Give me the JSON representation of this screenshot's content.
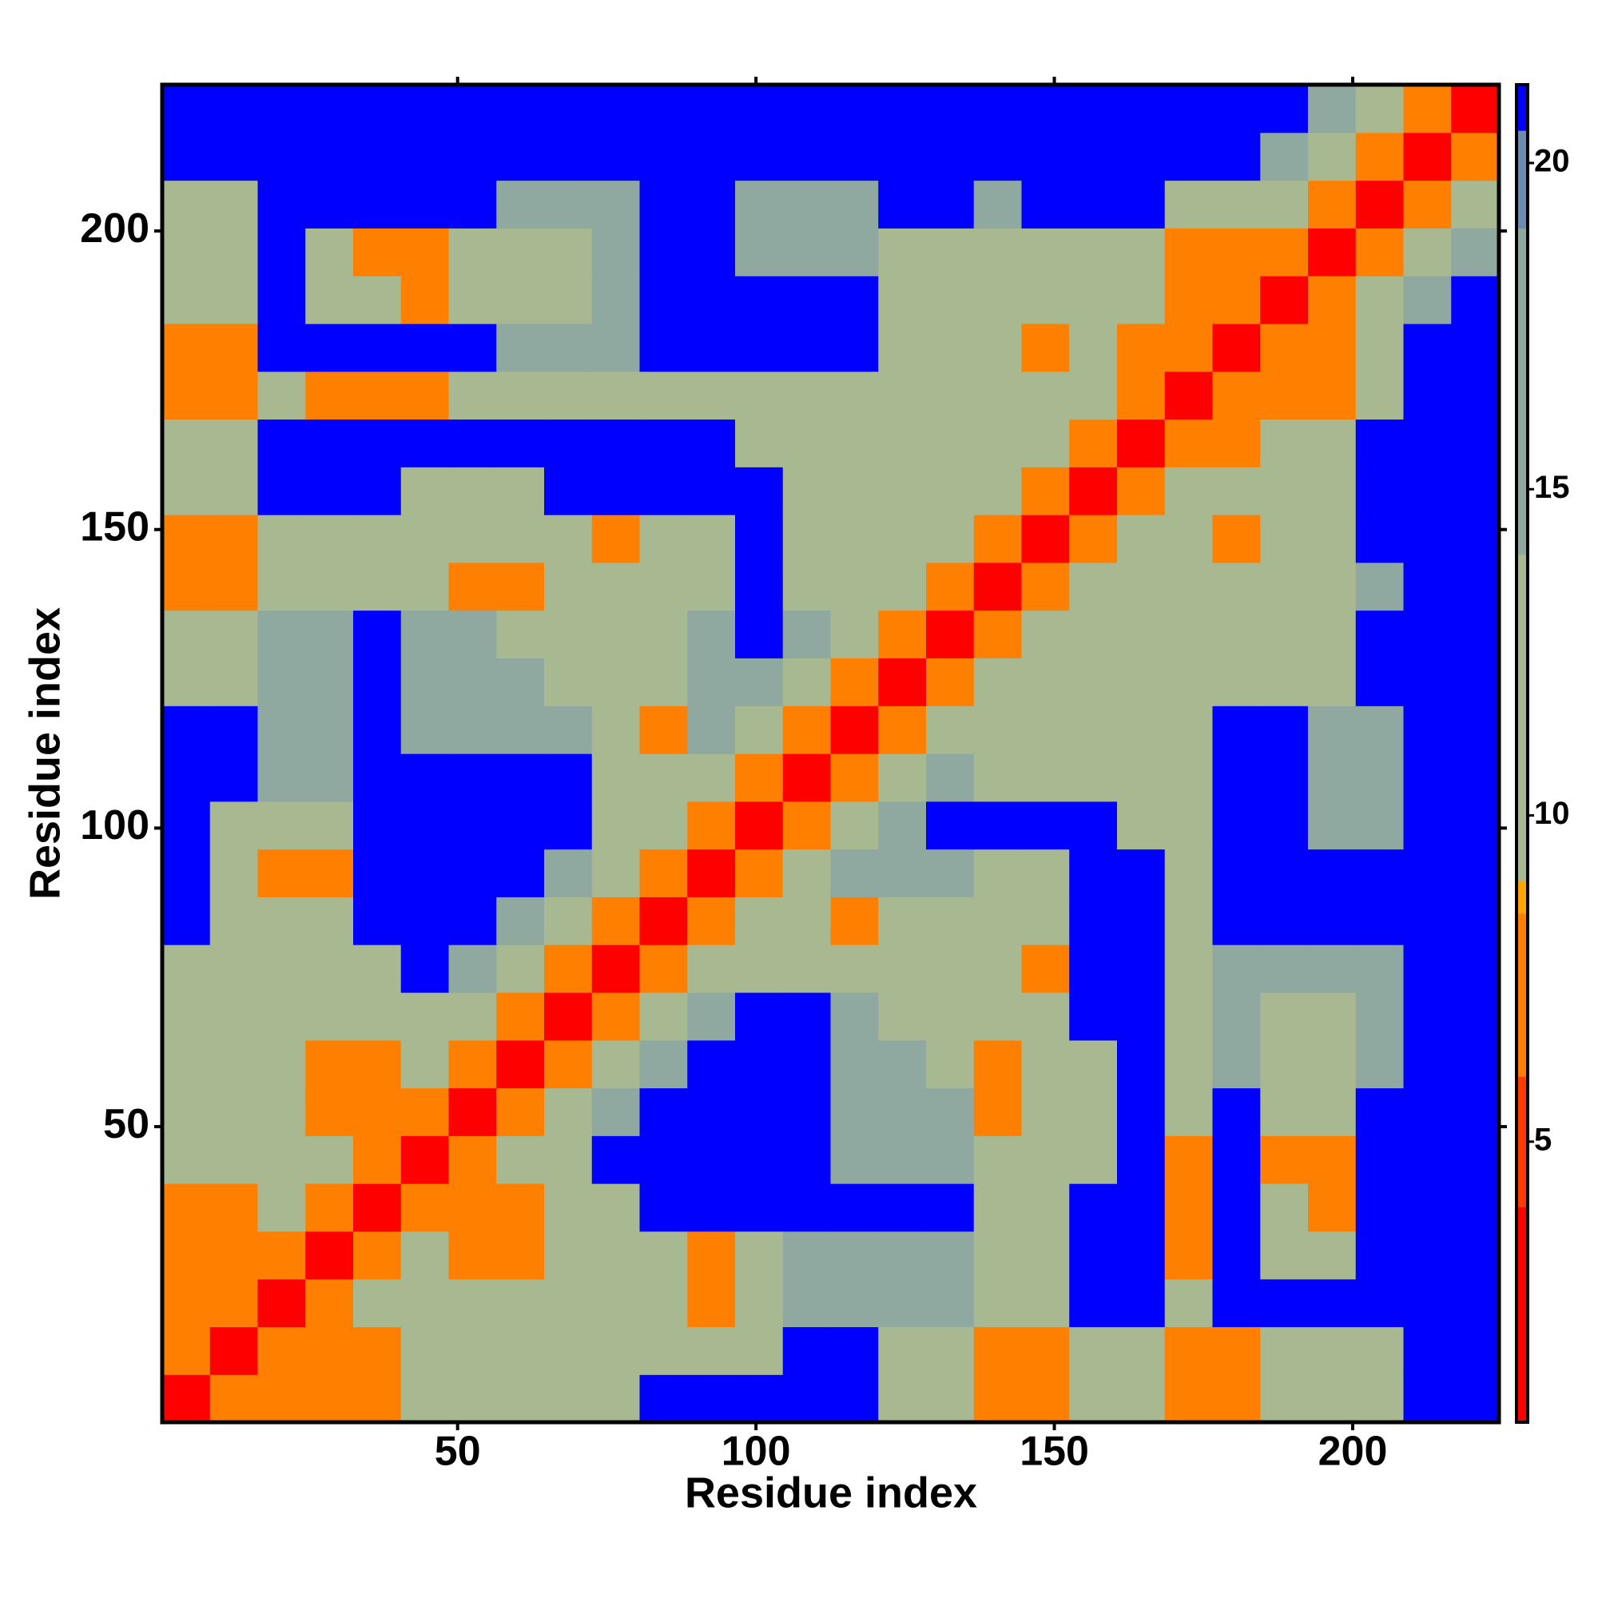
{
  "chart_data": {
    "type": "heatmap",
    "x_label": "Residue index",
    "y_label": "Residue index",
    "xlim": [
      0.5,
      224.5
    ],
    "ylim": [
      0.5,
      224.5
    ],
    "xticks": [
      50,
      100,
      150,
      200
    ],
    "yticks": [
      50,
      100,
      150,
      200
    ],
    "zlim": [
      0.7,
      21.2
    ],
    "colorbar_ticks": [
      5,
      10,
      15,
      20
    ],
    "colorscale": [
      [
        0.7,
        "#ff0000"
      ],
      [
        4,
        "#ff3a00"
      ],
      [
        6,
        "#ff8000"
      ],
      [
        8.5,
        "#ffa500"
      ],
      [
        9,
        "#a8b890"
      ],
      [
        14,
        "#8fa8a0"
      ],
      [
        19,
        "#6e8cb0"
      ],
      [
        20.5,
        "#0000ff"
      ]
    ],
    "z": [
      [
        3,
        7,
        7,
        7,
        7,
        12,
        12,
        12,
        12,
        12,
        21,
        21,
        21,
        21,
        21,
        12,
        12,
        7,
        7,
        12,
        12,
        7,
        7,
        12,
        12,
        12,
        21,
        21
      ],
      [
        7,
        3,
        7,
        7,
        7,
        12,
        12,
        12,
        12,
        12,
        12,
        12,
        12,
        21,
        21,
        12,
        12,
        7,
        7,
        12,
        12,
        7,
        7,
        12,
        12,
        12,
        21,
        21
      ],
      [
        7,
        7,
        3,
        7,
        12,
        12,
        12,
        12,
        12,
        12,
        12,
        7,
        12,
        17,
        17,
        17,
        17,
        12,
        12,
        21,
        21,
        12,
        21,
        21,
        21,
        21,
        21,
        21
      ],
      [
        7,
        7,
        7,
        3,
        7,
        12,
        7,
        7,
        12,
        12,
        12,
        7,
        12,
        17,
        17,
        17,
        17,
        12,
        12,
        21,
        21,
        7,
        21,
        12,
        12,
        21,
        21,
        21
      ],
      [
        7,
        7,
        12,
        7,
        3,
        7,
        7,
        7,
        12,
        12,
        21,
        21,
        21,
        21,
        21,
        21,
        21,
        12,
        12,
        21,
        21,
        7,
        21,
        12,
        7,
        21,
        21,
        21
      ],
      [
        12,
        12,
        12,
        12,
        7,
        3,
        7,
        12,
        12,
        21,
        21,
        21,
        21,
        21,
        17,
        17,
        17,
        12,
        12,
        12,
        21,
        7,
        21,
        7,
        7,
        21,
        21,
        21
      ],
      [
        12,
        12,
        12,
        7,
        7,
        7,
        3,
        7,
        12,
        17,
        21,
        21,
        21,
        21,
        17,
        17,
        17,
        7,
        12,
        12,
        21,
        12,
        21,
        12,
        12,
        21,
        21,
        21
      ],
      [
        12,
        12,
        12,
        7,
        7,
        12,
        7,
        3,
        7,
        12,
        17,
        21,
        21,
        21,
        17,
        17,
        12,
        7,
        12,
        12,
        21,
        12,
        17,
        12,
        12,
        17,
        21,
        21
      ],
      [
        12,
        12,
        12,
        12,
        12,
        12,
        12,
        7,
        3,
        7,
        12,
        17,
        21,
        21,
        17,
        12,
        12,
        12,
        12,
        21,
        21,
        12,
        17,
        12,
        12,
        17,
        21,
        21
      ],
      [
        12,
        12,
        12,
        12,
        12,
        21,
        17,
        12,
        7,
        3,
        7,
        12,
        12,
        12,
        12,
        12,
        12,
        12,
        7,
        21,
        21,
        12,
        17,
        17,
        17,
        17,
        21,
        21
      ],
      [
        21,
        12,
        12,
        12,
        21,
        21,
        21,
        17,
        12,
        7,
        3,
        7,
        12,
        12,
        7,
        12,
        12,
        12,
        12,
        21,
        21,
        12,
        21,
        21,
        21,
        21,
        21,
        21
      ],
      [
        21,
        12,
        7,
        7,
        21,
        21,
        21,
        21,
        17,
        12,
        7,
        3,
        7,
        12,
        17,
        17,
        17,
        12,
        12,
        21,
        21,
        12,
        21,
        21,
        21,
        21,
        21,
        21
      ],
      [
        21,
        12,
        12,
        12,
        21,
        21,
        21,
        21,
        21,
        12,
        12,
        7,
        3,
        7,
        12,
        17,
        21,
        21,
        21,
        21,
        12,
        12,
        21,
        21,
        17,
        17,
        21,
        21
      ],
      [
        21,
        21,
        17,
        17,
        21,
        21,
        21,
        21,
        21,
        12,
        12,
        12,
        7,
        3,
        7,
        12,
        17,
        12,
        12,
        12,
        12,
        12,
        21,
        21,
        17,
        17,
        21,
        21
      ],
      [
        21,
        21,
        17,
        17,
        21,
        17,
        17,
        17,
        17,
        12,
        7,
        17,
        12,
        7,
        3,
        7,
        12,
        12,
        12,
        12,
        12,
        12,
        21,
        21,
        17,
        17,
        21,
        21
      ],
      [
        12,
        12,
        17,
        17,
        21,
        17,
        17,
        17,
        12,
        12,
        12,
        17,
        17,
        12,
        7,
        3,
        7,
        12,
        12,
        12,
        12,
        12,
        12,
        12,
        12,
        21,
        21,
        21
      ],
      [
        12,
        12,
        17,
        17,
        21,
        17,
        17,
        12,
        12,
        12,
        12,
        17,
        21,
        17,
        12,
        7,
        3,
        7,
        12,
        12,
        12,
        12,
        12,
        12,
        12,
        21,
        21,
        21
      ],
      [
        7,
        7,
        12,
        12,
        12,
        12,
        7,
        7,
        12,
        12,
        12,
        12,
        21,
        12,
        12,
        12,
        7,
        3,
        7,
        12,
        12,
        12,
        12,
        12,
        12,
        17,
        21,
        21
      ],
      [
        7,
        7,
        12,
        12,
        12,
        12,
        12,
        12,
        12,
        7,
        12,
        12,
        21,
        12,
        12,
        12,
        12,
        7,
        3,
        7,
        12,
        12,
        7,
        12,
        12,
        21,
        21,
        21
      ],
      [
        12,
        12,
        21,
        21,
        21,
        12,
        12,
        12,
        21,
        21,
        21,
        21,
        21,
        12,
        12,
        12,
        12,
        12,
        7,
        3,
        7,
        12,
        12,
        12,
        12,
        21,
        21,
        21
      ],
      [
        12,
        12,
        21,
        21,
        21,
        21,
        21,
        21,
        21,
        21,
        21,
        21,
        12,
        12,
        12,
        12,
        12,
        12,
        12,
        7,
        3,
        7,
        7,
        12,
        12,
        21,
        21,
        21
      ],
      [
        7,
        7,
        12,
        7,
        7,
        7,
        12,
        12,
        12,
        12,
        12,
        12,
        12,
        12,
        12,
        12,
        12,
        12,
        12,
        12,
        7,
        3,
        7,
        7,
        7,
        12,
        21,
        21
      ],
      [
        7,
        7,
        21,
        21,
        21,
        21,
        21,
        17,
        17,
        17,
        21,
        21,
        21,
        21,
        21,
        12,
        12,
        12,
        7,
        12,
        7,
        7,
        3,
        7,
        7,
        12,
        21,
        21
      ],
      [
        12,
        12,
        21,
        12,
        12,
        7,
        12,
        12,
        12,
        17,
        21,
        21,
        21,
        21,
        21,
        12,
        12,
        12,
        12,
        12,
        12,
        7,
        7,
        3,
        7,
        12,
        17,
        21
      ],
      [
        12,
        12,
        21,
        12,
        7,
        7,
        12,
        12,
        12,
        17,
        21,
        21,
        17,
        17,
        17,
        12,
        12,
        12,
        12,
        12,
        12,
        7,
        7,
        7,
        3,
        7,
        12,
        17
      ],
      [
        12,
        12,
        21,
        21,
        21,
        21,
        21,
        17,
        17,
        17,
        21,
        21,
        17,
        17,
        17,
        21,
        21,
        17,
        21,
        21,
        21,
        12,
        12,
        12,
        7,
        3,
        7,
        12
      ],
      [
        21,
        21,
        21,
        21,
        21,
        21,
        21,
        21,
        21,
        21,
        21,
        21,
        21,
        21,
        21,
        21,
        21,
        21,
        21,
        21,
        21,
        21,
        21,
        17,
        12,
        7,
        3,
        7
      ],
      [
        21,
        21,
        21,
        21,
        21,
        21,
        21,
        21,
        21,
        21,
        21,
        21,
        21,
        21,
        21,
        21,
        21,
        21,
        21,
        21,
        21,
        21,
        21,
        21,
        17,
        12,
        7,
        3
      ]
    ]
  }
}
